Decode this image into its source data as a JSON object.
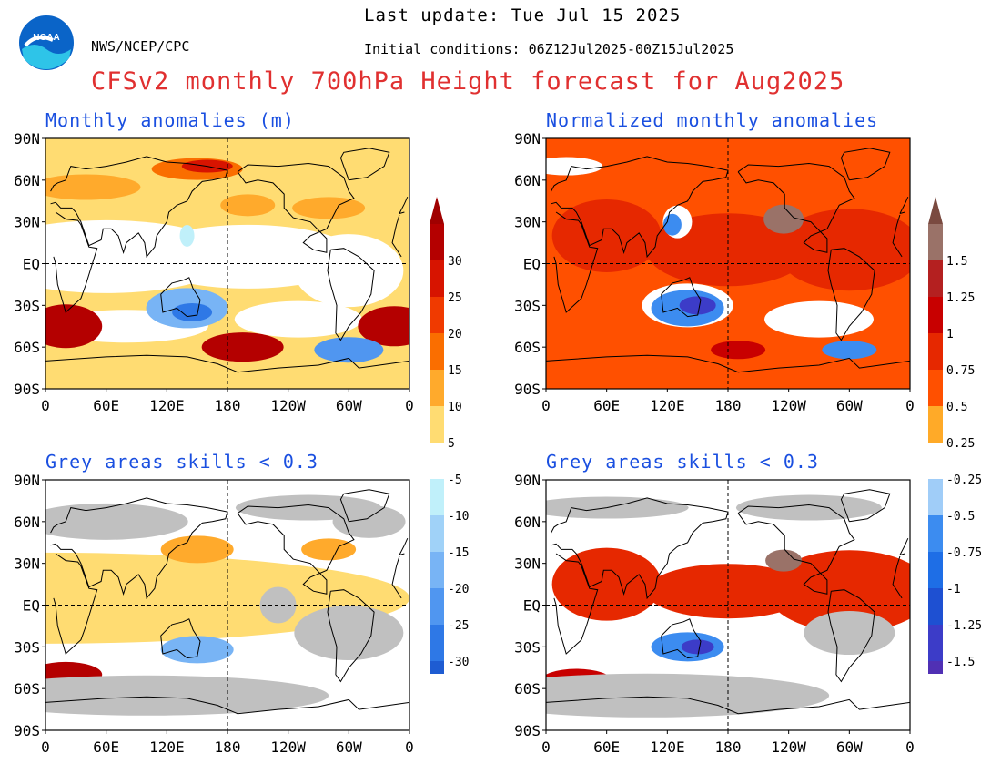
{
  "header": {
    "last_update": "Last update: Tue Jul 15 2025",
    "org": "NWS/NCEP/CPC",
    "initial_conditions": "Initial conditions: 06Z12Jul2025-00Z15Jul2025",
    "title": "CFSv2 monthly 700hPa Height forecast for Aug2025",
    "logo_text": "NOAA"
  },
  "panels": [
    {
      "id": "tl",
      "title": "Monthly anomalies (m)"
    },
    {
      "id": "tr",
      "title": "Normalized monthly anomalies"
    },
    {
      "id": "bl",
      "title": "Grey areas skills < 0.3"
    },
    {
      "id": "br",
      "title": "Grey areas skills < 0.3"
    }
  ],
  "axes": {
    "lat_labels": [
      "90N",
      "60N",
      "30N",
      "EQ",
      "30S",
      "60S",
      "90S"
    ],
    "lon_labels": [
      "0",
      "60E",
      "120E",
      "180",
      "120W",
      "60W",
      "0"
    ]
  },
  "colorbars": {
    "left": {
      "labels_positive": [
        "30",
        "25",
        "20",
        "15",
        "10",
        "5"
      ],
      "labels_negative": [
        "-5",
        "-10",
        "-15",
        "-20",
        "-25",
        "-30"
      ],
      "colors_positive": [
        "#b40000",
        "#d71400",
        "#f03a00",
        "#fa6e00",
        "#ffaa2c",
        "#ffdc72"
      ],
      "colors_negative": [
        "#c0f0fa",
        "#a0d2f8",
        "#78b4f5",
        "#5096f0",
        "#2e78e6",
        "#1e5cd2"
      ],
      "neutral": "#ffffff",
      "cap_top": "#a00000",
      "cap_bottom": "#1e5cd2"
    },
    "right": {
      "labels_positive": [
        "1.5",
        "1.25",
        "1",
        "0.75",
        "0.5",
        "0.25"
      ],
      "labels_negative": [
        "-0.25",
        "-0.5",
        "-0.75",
        "-1",
        "-1.25",
        "-1.5"
      ],
      "colors_positive": [
        "#9a7268",
        "#b42020",
        "#c80000",
        "#e62800",
        "#ff5000",
        "#ffaa28"
      ],
      "colors_negative": [
        "#a0cdf8",
        "#3c8cf0",
        "#1e6ee6",
        "#1e50d2",
        "#3c3cc8",
        "#5030b4"
      ],
      "neutral": "#ffffff",
      "cap_top": "#7a4a40",
      "cap_bottom": "#20109a"
    }
  },
  "colors": {
    "title_red": "#e03030",
    "panel_title_blue": "#1a4fe0",
    "grey_mask": "#c0c0c0"
  }
}
